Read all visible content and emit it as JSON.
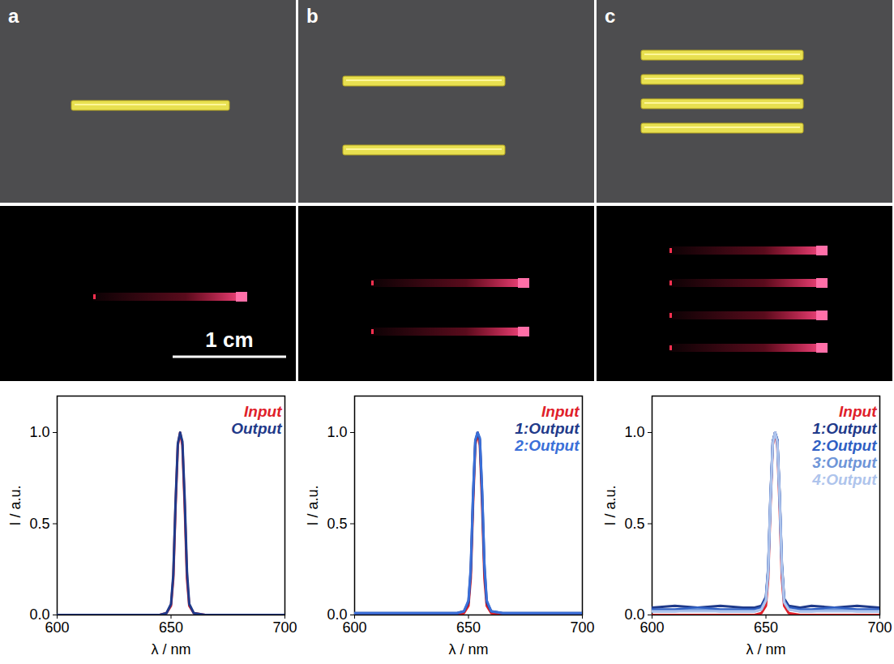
{
  "panel_labels": [
    "a",
    "b",
    "c"
  ],
  "rod_counts": [
    1,
    2,
    4
  ],
  "scale_bar": "1 cm",
  "chart_data": [
    {
      "type": "line",
      "x_label": "λ / nm",
      "y_label": "I / a.u.",
      "x": [
        600,
        640,
        645,
        648,
        650,
        651,
        652,
        653,
        654,
        655,
        656,
        657,
        658,
        660,
        665,
        700
      ],
      "series": [
        {
          "name": "Input",
          "color": "#e0202a",
          "values": [
            0,
            0,
            0,
            0.01,
            0.05,
            0.2,
            0.6,
            0.93,
            1.0,
            0.93,
            0.6,
            0.2,
            0.05,
            0.01,
            0,
            0
          ]
        },
        {
          "name": "Output",
          "color": "#1f3a8a",
          "values": [
            0,
            0,
            0,
            0.01,
            0.06,
            0.22,
            0.62,
            0.94,
            1.0,
            0.95,
            0.64,
            0.24,
            0.06,
            0.01,
            0,
            0
          ]
        }
      ],
      "xlim": [
        600,
        700
      ],
      "xticks": [
        600,
        650,
        700
      ],
      "ylim": [
        0,
        1.2
      ],
      "yticks": [
        {
          "value": 0,
          "label": "0.0"
        },
        {
          "value": 0.5,
          "label": "0.5"
        },
        {
          "value": 1,
          "label": "1.0"
        }
      ],
      "legend": "upper right",
      "grid": false
    },
    {
      "type": "line",
      "x_label": "λ / nm",
      "y_label": "I / a.u.",
      "x": [
        600,
        640,
        645,
        648,
        650,
        651,
        652,
        653,
        654,
        655,
        656,
        657,
        658,
        660,
        665,
        700
      ],
      "series": [
        {
          "name": "Input",
          "color": "#e0202a",
          "values": [
            0,
            0,
            0,
            0.01,
            0.05,
            0.2,
            0.6,
            0.93,
            1.0,
            0.93,
            0.6,
            0.2,
            0.05,
            0.01,
            0,
            0
          ]
        },
        {
          "name": "1:Output",
          "color": "#1f3a8a",
          "values": [
            0.01,
            0.01,
            0.01,
            0.02,
            0.07,
            0.24,
            0.64,
            0.95,
            1.0,
            0.96,
            0.66,
            0.26,
            0.07,
            0.02,
            0.01,
            0.01
          ]
        },
        {
          "name": "2:Output",
          "color": "#3a6fd8",
          "values": [
            0.01,
            0.01,
            0.01,
            0.02,
            0.08,
            0.26,
            0.66,
            0.96,
            1.0,
            0.97,
            0.68,
            0.28,
            0.08,
            0.02,
            0.01,
            0.01
          ]
        }
      ],
      "xlim": [
        600,
        700
      ],
      "xticks": [
        600,
        650,
        700
      ],
      "ylim": [
        0,
        1.2
      ],
      "yticks": [
        {
          "value": 0,
          "label": "0.0"
        },
        {
          "value": 0.5,
          "label": "0.5"
        },
        {
          "value": 1,
          "label": "1.0"
        }
      ],
      "legend": "upper right",
      "grid": false
    },
    {
      "type": "line",
      "x_label": "λ / nm",
      "y_label": "I / a.u.",
      "x": [
        600,
        610,
        620,
        630,
        640,
        645,
        648,
        650,
        651,
        652,
        653,
        654,
        655,
        656,
        657,
        658,
        660,
        665,
        670,
        680,
        690,
        700
      ],
      "series": [
        {
          "name": "Input",
          "color": "#e0202a",
          "values": [
            0,
            0,
            0,
            0,
            0,
            0,
            0.01,
            0.05,
            0.2,
            0.6,
            0.93,
            1.0,
            0.93,
            0.6,
            0.2,
            0.05,
            0.01,
            0,
            0,
            0,
            0,
            0
          ]
        },
        {
          "name": "1:Output",
          "color": "#1f3a8a",
          "values": [
            0.04,
            0.05,
            0.04,
            0.05,
            0.04,
            0.04,
            0.05,
            0.1,
            0.26,
            0.65,
            0.95,
            1.0,
            0.96,
            0.67,
            0.28,
            0.09,
            0.05,
            0.04,
            0.05,
            0.04,
            0.05,
            0.04
          ]
        },
        {
          "name": "2:Output",
          "color": "#2f5fc4",
          "values": [
            0.03,
            0.03,
            0.04,
            0.03,
            0.03,
            0.03,
            0.04,
            0.09,
            0.25,
            0.64,
            0.95,
            1.0,
            0.96,
            0.66,
            0.27,
            0.08,
            0.04,
            0.03,
            0.03,
            0.04,
            0.03,
            0.03
          ]
        },
        {
          "name": "3:Output",
          "color": "#6e95d8",
          "values": [
            0.02,
            0.02,
            0.03,
            0.02,
            0.02,
            0.02,
            0.03,
            0.08,
            0.24,
            0.63,
            0.94,
            1.0,
            0.95,
            0.65,
            0.26,
            0.07,
            0.03,
            0.02,
            0.02,
            0.03,
            0.02,
            0.02
          ]
        },
        {
          "name": "4:Output",
          "color": "#aec4ec",
          "values": [
            0.02,
            0.02,
            0.02,
            0.02,
            0.02,
            0.02,
            0.03,
            0.08,
            0.24,
            0.63,
            0.94,
            1.0,
            0.95,
            0.65,
            0.26,
            0.07,
            0.03,
            0.02,
            0.02,
            0.02,
            0.02,
            0.02
          ]
        }
      ],
      "xlim": [
        600,
        700
      ],
      "xticks": [
        600,
        650,
        700
      ],
      "ylim": [
        0,
        1.2
      ],
      "yticks": [
        {
          "value": 0,
          "label": "0.0"
        },
        {
          "value": 0.5,
          "label": "0.5"
        },
        {
          "value": 1,
          "label": "1.0"
        }
      ],
      "legend": "upper right",
      "grid": false
    }
  ]
}
